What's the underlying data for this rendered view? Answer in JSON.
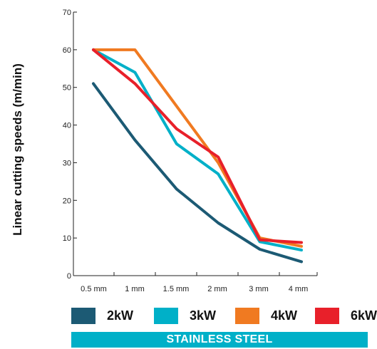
{
  "chart_data": {
    "type": "line",
    "categories": [
      "0.5 mm",
      "1 mm",
      "1.5 mm",
      "2 mm",
      "3 mm",
      "4 mm"
    ],
    "ylabel": "Linear cutting speeds (m/min)",
    "ylim": [
      0,
      70
    ],
    "yticks": [
      "0",
      "10",
      "20",
      "30",
      "40",
      "50",
      "60",
      "70"
    ],
    "grid": false,
    "legend_position": "bottom",
    "series": [
      {
        "name": "2kW",
        "color": "#1c5a74",
        "values": [
          51,
          36,
          23,
          14,
          7,
          3.7
        ]
      },
      {
        "name": "3kW",
        "color": "#00b0c8",
        "values": [
          60,
          54,
          35,
          27,
          9,
          6.8
        ]
      },
      {
        "name": "4kW",
        "color": "#f07a21",
        "values": [
          60,
          60,
          45,
          30,
          10,
          7.8
        ]
      },
      {
        "name": "6kW",
        "color": "#e8202a",
        "values": [
          60,
          51,
          39,
          31.5,
          9.5,
          8.8
        ]
      }
    ]
  },
  "band": {
    "label": "STAINLESS STEEL",
    "color": "#00b0c8"
  }
}
